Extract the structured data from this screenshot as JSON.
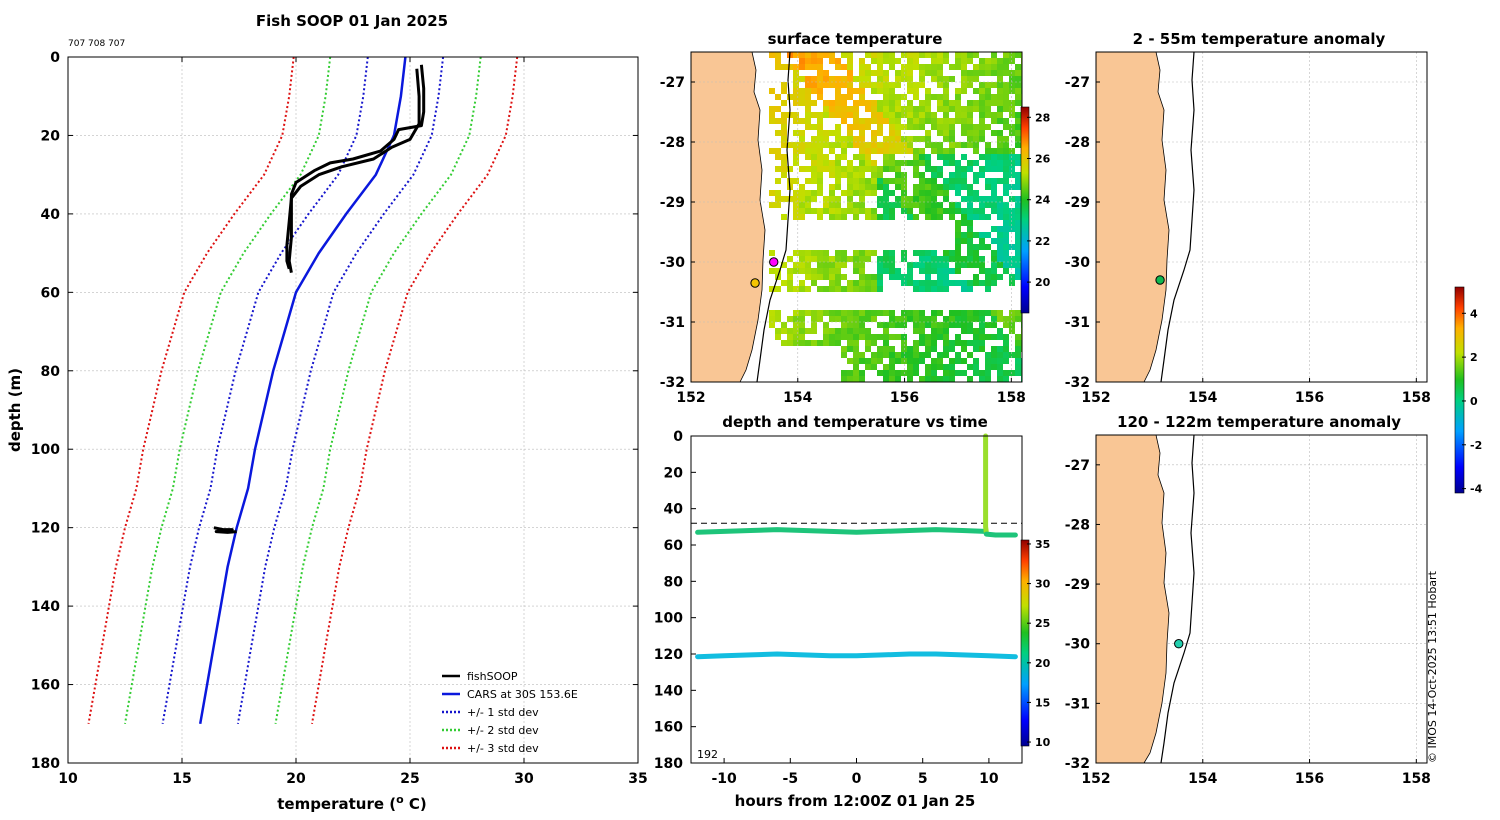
{
  "figure": {
    "credit": "© IMOS 14-Oct-2025 13:51 Hobart"
  },
  "chart_data": [
    {
      "id": "profile",
      "type": "line",
      "title": "Fish SOOP 01 Jan 2025",
      "subtitle": "707 708 707",
      "xlabel": "temperature (",
      "xlabel_sup": "o",
      "xlabel_end": " C)",
      "ylabel": "depth (m)",
      "xlim": [
        10,
        35
      ],
      "ylim": [
        0,
        180
      ],
      "y_reversed": true,
      "xticks": [
        10,
        15,
        20,
        25,
        30,
        35
      ],
      "yticks": [
        0,
        20,
        40,
        60,
        80,
        100,
        120,
        140,
        160,
        180
      ],
      "grid": true,
      "legend_position": "bottom-right",
      "cars_depths": [
        0,
        10,
        20,
        30,
        40,
        50,
        60,
        70,
        80,
        90,
        100,
        110,
        120,
        130,
        140,
        150,
        160,
        170
      ],
      "cars_mean": [
        24.8,
        24.6,
        24.3,
        23.5,
        22.2,
        21.0,
        20.0,
        19.5,
        19.0,
        18.6,
        18.2,
        17.9,
        17.4,
        17.0,
        16.7,
        16.4,
        16.1,
        15.8
      ],
      "std_bands": [
        {
          "name": "+/- 1 std dev",
          "color": "#1515cc",
          "offset": 1.65
        },
        {
          "name": "+/- 2 std dev",
          "color": "#33cc33",
          "offset": 3.3
        },
        {
          "name": "+/- 3 std dev",
          "color": "#dd1111",
          "offset": 4.9
        }
      ],
      "series": [
        {
          "name": "fishSOOP",
          "color": "#000000",
          "points": [
            [
              25.5,
              2
            ],
            [
              25.6,
              8
            ],
            [
              25.6,
              14
            ],
            [
              25.5,
              17.5
            ],
            [
              24.5,
              18.5
            ],
            [
              24.3,
              21
            ],
            [
              23.7,
              24
            ],
            [
              22.5,
              26
            ],
            [
              21.5,
              27
            ],
            [
              20.8,
              29
            ],
            [
              20.0,
              32
            ],
            [
              19.8,
              35
            ],
            [
              19.8,
              40
            ],
            [
              19.8,
              46
            ],
            [
              19.7,
              52
            ],
            [
              19.8,
              55
            ]
          ]
        },
        {
          "name": "fishSOOP",
          "color": "#000000",
          "points": [
            [
              25.3,
              3
            ],
            [
              25.4,
              10
            ],
            [
              25.4,
              17
            ],
            [
              25.0,
              21
            ],
            [
              24.2,
              23
            ],
            [
              23.4,
              26
            ],
            [
              22.0,
              28
            ],
            [
              21.0,
              30
            ],
            [
              20.2,
              33
            ],
            [
              19.8,
              36
            ],
            [
              19.7,
              42
            ],
            [
              19.6,
              48
            ],
            [
              19.6,
              52
            ],
            [
              19.7,
              54
            ]
          ]
        },
        {
          "name": "fishSOOP",
          "color": "#000000",
          "points": [
            [
              16.4,
              120
            ],
            [
              16.8,
              120.5
            ],
            [
              17.2,
              120.5
            ],
            [
              16.5,
              121
            ],
            [
              17.0,
              121.2
            ],
            [
              17.4,
              121
            ]
          ]
        },
        {
          "name": "CARS at 30S 153.6E",
          "color": "#0a18dd"
        }
      ]
    },
    {
      "id": "sst_map",
      "type": "heatmap",
      "title": "surface temperature",
      "xlim": [
        152,
        158.2
      ],
      "ylim": [
        -32,
        -26.5
      ],
      "xticks": [
        152,
        154,
        156,
        158
      ],
      "yticks": [
        -27,
        -28,
        -29,
        -30,
        -31,
        -32
      ],
      "colorbar": {
        "min": 18.5,
        "max": 28.5,
        "ticks": [
          20,
          22,
          24,
          26,
          28
        ]
      },
      "markers": [
        {
          "name": "fish SOOP position",
          "lon": 153.55,
          "lat": -30.0,
          "color": "#ff00ff"
        },
        {
          "name": "reference position",
          "lon": 153.2,
          "lat": -30.35,
          "color": "#f5c400"
        }
      ]
    },
    {
      "id": "depth_time",
      "type": "scatter",
      "title": "depth and temperature vs time",
      "xlabel": "hours from 12:00Z 01 Jan 25",
      "xlim": [
        -12.5,
        12.5
      ],
      "ylim": [
        0,
        180
      ],
      "y_reversed": true,
      "xticks": [
        -10,
        -5,
        0,
        5,
        10
      ],
      "yticks": [
        0,
        20,
        40,
        60,
        80,
        100,
        120,
        140,
        160,
        180
      ],
      "reference_depth": 48,
      "corner_label": "192",
      "colorbar": {
        "min": 9.5,
        "max": 35.5,
        "ticks": [
          10,
          15,
          20,
          25,
          30,
          35
        ]
      },
      "series": [
        {
          "name": "upper logger",
          "color": "#1ec47a",
          "points": [
            [
              -12,
              53
            ],
            [
              -10,
              52.5
            ],
            [
              -8,
              52
            ],
            [
              -6,
              51.5
            ],
            [
              -4,
              52
            ],
            [
              -2,
              52.5
            ],
            [
              0,
              53
            ],
            [
              2,
              52.5
            ],
            [
              4,
              52
            ],
            [
              6,
              51.5
            ],
            [
              8,
              52
            ],
            [
              9.7,
              52.5
            ]
          ]
        },
        {
          "name": "upper logger profile",
          "color": "#9adf2c",
          "points": [
            [
              9.75,
              0
            ],
            [
              9.75,
              10
            ],
            [
              9.75,
              20
            ],
            [
              9.75,
              30
            ],
            [
              9.75,
              40
            ],
            [
              9.75,
              50
            ],
            [
              9.8,
              53
            ]
          ]
        },
        {
          "name": "upper logger after",
          "color": "#1ec47a",
          "points": [
            [
              9.8,
              54
            ],
            [
              10.5,
              54.5
            ],
            [
              11.2,
              54.5
            ],
            [
              12,
              54.5
            ]
          ]
        },
        {
          "name": "lower logger",
          "color": "#12bde0",
          "points": [
            [
              -12,
              121.5
            ],
            [
              -10,
              121
            ],
            [
              -8,
              120.5
            ],
            [
              -6,
              120
            ],
            [
              -4,
              120.5
            ],
            [
              -2,
              121
            ],
            [
              0,
              121
            ],
            [
              2,
              120.5
            ],
            [
              4,
              120
            ],
            [
              6,
              120
            ],
            [
              8,
              120.5
            ],
            [
              10,
              121
            ],
            [
              12,
              121.5
            ]
          ]
        }
      ]
    },
    {
      "id": "anomaly_shallow",
      "type": "heatmap",
      "title": "2 - 55m temperature anomaly",
      "xlim": [
        152,
        158.2
      ],
      "ylim": [
        -32,
        -26.5
      ],
      "xticks": [
        152,
        154,
        156,
        158
      ],
      "yticks": [
        -27,
        -28,
        -29,
        -30,
        -31,
        -32
      ],
      "markers": [
        {
          "name": "anomaly sample",
          "lon": 153.2,
          "lat": -30.3,
          "color": "#10b850"
        }
      ]
    },
    {
      "id": "anomaly_deep",
      "type": "heatmap",
      "title": "120 - 122m temperature anomaly",
      "xlim": [
        152,
        158.2
      ],
      "ylim": [
        -32,
        -26.5
      ],
      "xticks": [
        152,
        154,
        156,
        158
      ],
      "yticks": [
        -27,
        -28,
        -29,
        -30,
        -31,
        -32
      ],
      "colorbar": {
        "min": -4.2,
        "max": 5.2,
        "ticks": [
          -4,
          -2,
          0,
          2,
          4
        ]
      },
      "markers": [
        {
          "name": "anomaly sample",
          "lon": 153.55,
          "lat": -30.0,
          "color": "#22cfae"
        }
      ]
    }
  ]
}
